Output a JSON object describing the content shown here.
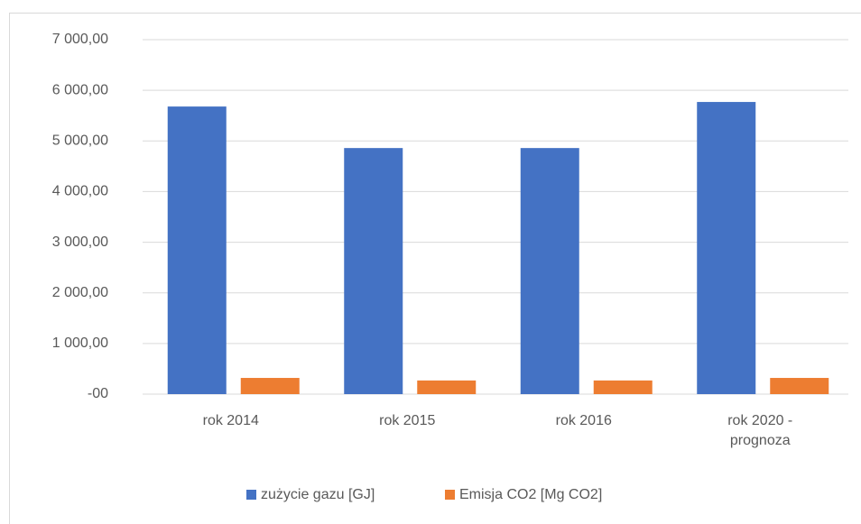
{
  "chart_data": {
    "type": "bar",
    "categories": [
      "rok 2014",
      "rok 2015",
      "rok 2016",
      "rok 2020 - prognoza"
    ],
    "series": [
      {
        "name": "zużycie gazu [GJ]",
        "color": "#4472c4",
        "values": [
          5680,
          4860,
          4860,
          5770
        ]
      },
      {
        "name": "Emisja CO2 [Mg CO2]",
        "color": "#ed7d31",
        "values": [
          320,
          270,
          270,
          320
        ]
      }
    ],
    "ylim": [
      0,
      7000
    ],
    "yticks": [
      {
        "value": 0,
        "label": "-00"
      },
      {
        "value": 1000,
        "label": "1 000,00"
      },
      {
        "value": 2000,
        "label": "2 000,00"
      },
      {
        "value": 3000,
        "label": "3 000,00"
      },
      {
        "value": 4000,
        "label": "4 000,00"
      },
      {
        "value": 5000,
        "label": "5 000,00"
      },
      {
        "value": 6000,
        "label": "6 000,00"
      },
      {
        "value": 7000,
        "label": "7 000,00"
      }
    ],
    "grid": true,
    "legend": "bottom"
  }
}
